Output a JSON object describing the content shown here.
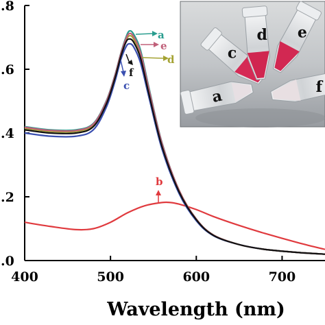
{
  "chart_data": {
    "type": "line",
    "title": "",
    "xlabel": "Wavelength (nm)",
    "ylabel": "",
    "xlim": [
      400,
      750
    ],
    "ylim": [
      0.0,
      0.8
    ],
    "x_ticks": [
      400,
      500,
      600,
      700
    ],
    "x_tick_labels": [
      "400",
      "500",
      "600",
      "700"
    ],
    "y_ticks": [
      0.0,
      0.2,
      0.4,
      0.6,
      0.8
    ],
    "y_tick_labels": [
      ".0",
      ".2",
      ".4",
      ".6",
      ".8"
    ],
    "grid": false,
    "legend": "none",
    "series": [
      {
        "name": "a",
        "color": "#2a9d8f",
        "x": [
          400,
          430,
          460,
          480,
          495,
          505,
          512,
          518,
          522,
          527,
          535,
          545,
          560,
          580,
          600,
          620,
          650,
          680,
          720,
          750
        ],
        "y": [
          0.42,
          0.41,
          0.41,
          0.43,
          0.5,
          0.58,
          0.65,
          0.7,
          0.72,
          0.71,
          0.66,
          0.54,
          0.37,
          0.22,
          0.13,
          0.08,
          0.05,
          0.035,
          0.025,
          0.02
        ]
      },
      {
        "name": "b",
        "color": "#e03a3e",
        "x": [
          400,
          430,
          460,
          480,
          500,
          520,
          540,
          560,
          570,
          580,
          600,
          620,
          650,
          680,
          720,
          750
        ],
        "y": [
          0.12,
          0.107,
          0.097,
          0.1,
          0.12,
          0.15,
          0.172,
          0.182,
          0.182,
          0.177,
          0.16,
          0.138,
          0.11,
          0.085,
          0.055,
          0.035
        ]
      },
      {
        "name": "c",
        "color": "#3a4fb0",
        "x": [
          400,
          430,
          460,
          480,
          495,
          505,
          512,
          518,
          522,
          527,
          535,
          545,
          560,
          580,
          600,
          620,
          650,
          680,
          720,
          750
        ],
        "y": [
          0.4,
          0.39,
          0.39,
          0.41,
          0.48,
          0.56,
          0.63,
          0.67,
          0.68,
          0.67,
          0.62,
          0.51,
          0.35,
          0.21,
          0.125,
          0.078,
          0.05,
          0.035,
          0.025,
          0.02
        ]
      },
      {
        "name": "d",
        "color": "#a4a232",
        "x": [
          400,
          430,
          460,
          480,
          495,
          505,
          512,
          518,
          522,
          527,
          535,
          545,
          560,
          580,
          600,
          620,
          650,
          680,
          720,
          750
        ],
        "y": [
          0.415,
          0.405,
          0.405,
          0.425,
          0.495,
          0.575,
          0.645,
          0.69,
          0.705,
          0.695,
          0.645,
          0.53,
          0.365,
          0.22,
          0.13,
          0.08,
          0.05,
          0.035,
          0.025,
          0.02
        ]
      },
      {
        "name": "e",
        "color": "#c0607a",
        "x": [
          400,
          430,
          460,
          480,
          495,
          505,
          512,
          518,
          522,
          527,
          535,
          545,
          560,
          580,
          600,
          620,
          650,
          680,
          720,
          750
        ],
        "y": [
          0.418,
          0.408,
          0.408,
          0.428,
          0.498,
          0.578,
          0.648,
          0.695,
          0.712,
          0.702,
          0.652,
          0.535,
          0.368,
          0.22,
          0.13,
          0.08,
          0.05,
          0.035,
          0.025,
          0.02
        ]
      },
      {
        "name": "f",
        "color": "#111111",
        "x": [
          400,
          430,
          460,
          480,
          495,
          505,
          512,
          518,
          522,
          527,
          535,
          545,
          560,
          580,
          600,
          620,
          650,
          680,
          720,
          750
        ],
        "y": [
          0.41,
          0.4,
          0.4,
          0.42,
          0.49,
          0.57,
          0.64,
          0.685,
          0.695,
          0.685,
          0.635,
          0.52,
          0.358,
          0.215,
          0.128,
          0.079,
          0.05,
          0.035,
          0.025,
          0.02
        ]
      }
    ],
    "annotations": [
      {
        "label": "a",
        "color": "#2a9d8f"
      },
      {
        "label": "e",
        "color": "#c0607a"
      },
      {
        "label": "d",
        "color": "#a4a232"
      },
      {
        "label": "f",
        "color": "#111111"
      },
      {
        "label": "c",
        "color": "#3a4fb0"
      },
      {
        "label": "b",
        "color": "#e03a3e"
      }
    ]
  },
  "inset_photo": {
    "tubes": [
      {
        "label": "a",
        "liquid_color": "#e7dfe3"
      },
      {
        "label": "c",
        "liquid_color": "#d52a55"
      },
      {
        "label": "d",
        "liquid_color": "#d02650"
      },
      {
        "label": "e",
        "liquid_color": "#d22852"
      },
      {
        "label": "f",
        "liquid_color": "#e8dfe2"
      }
    ]
  }
}
